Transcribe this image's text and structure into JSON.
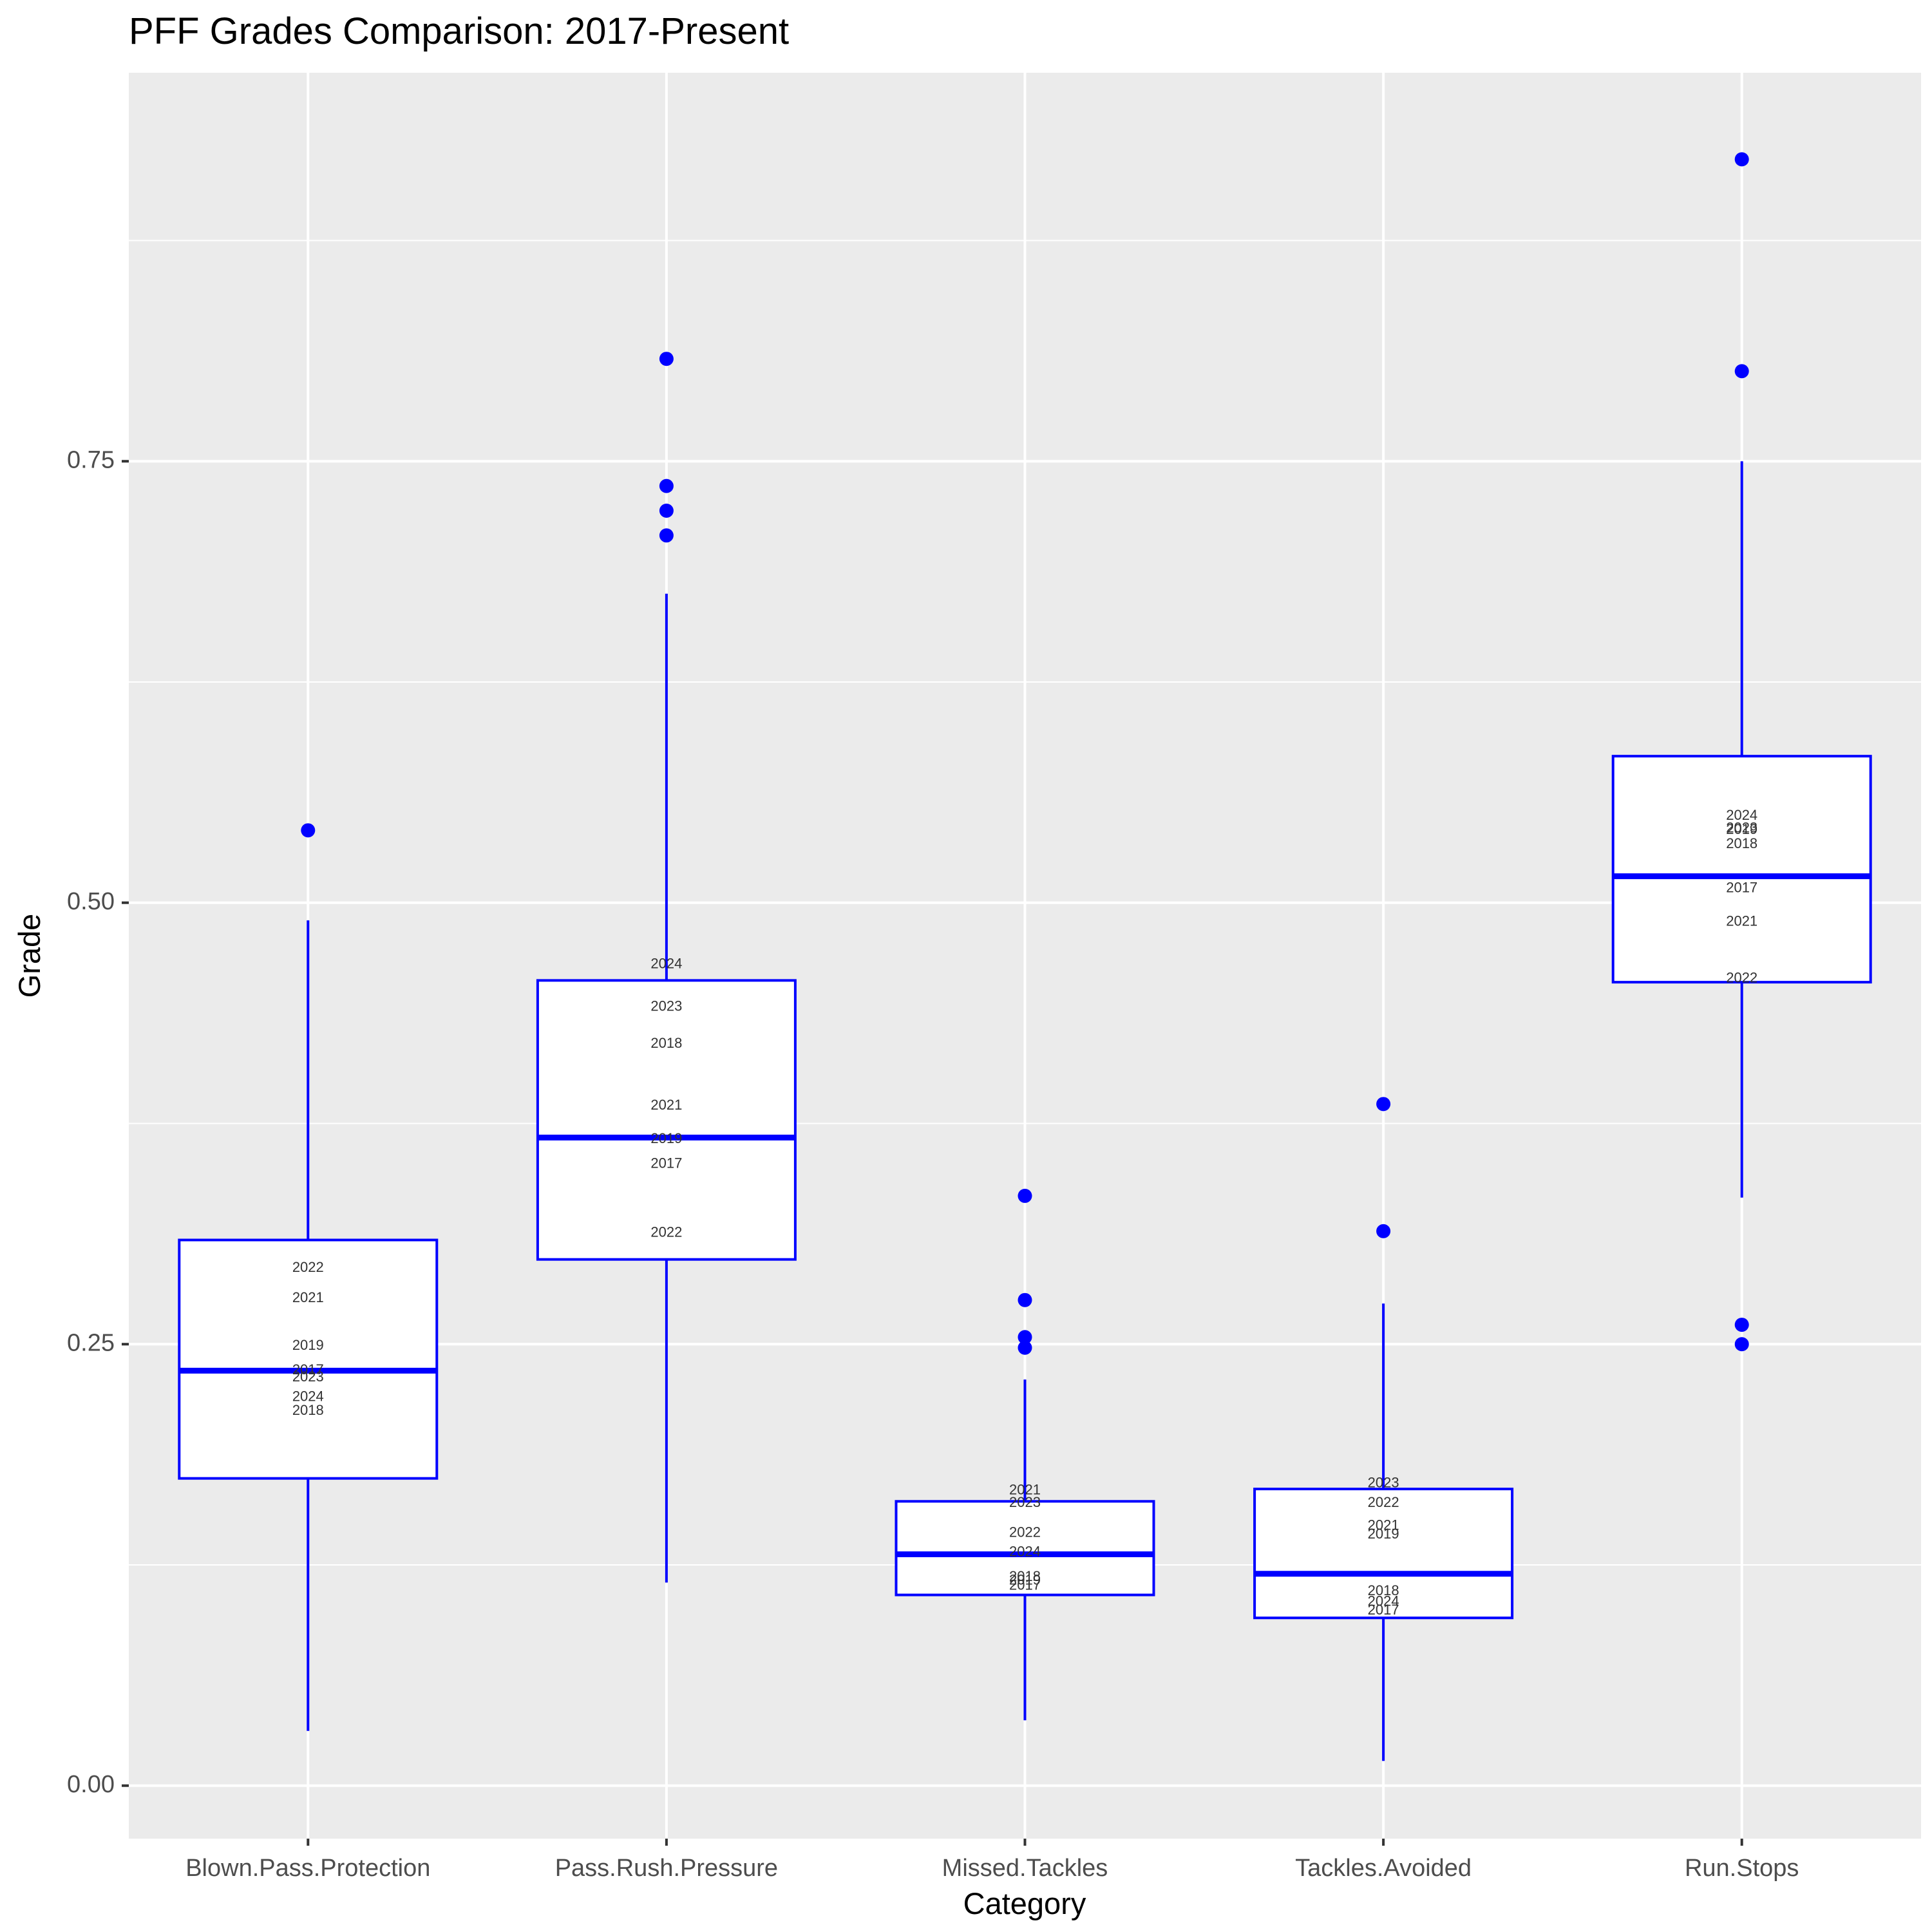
{
  "chart_data": {
    "type": "box",
    "title": "PFF Grades Comparison: 2017-Present",
    "xlabel": "Category",
    "ylabel": "Grade",
    "ylim": [
      -0.03,
      0.97
    ],
    "yticks": [
      0.0,
      0.25,
      0.5,
      0.75
    ],
    "ytick_labels": [
      "0.00",
      "0.25",
      "0.50",
      "0.75"
    ],
    "grid": true,
    "legend": "none",
    "colors": {
      "panel": "#ebebeb",
      "grid": "#ffffff",
      "box_stroke": "#0000ff",
      "box_fill": "#ffffff",
      "outlier": "#0000ff",
      "tick_text": "#4d4d4d",
      "year_text": "#333333"
    },
    "categories": [
      "Blown.Pass.Protection",
      "Pass.Rush.Pressure",
      "Missed.Tackles",
      "Tackles.Avoided",
      "Run.Stops"
    ],
    "boxes": [
      {
        "category": "Blown.Pass.Protection",
        "whisker_low": 0.031,
        "q1": 0.174,
        "median": 0.235,
        "q3": 0.309,
        "whisker_high": 0.49,
        "outliers": [
          0.541
        ],
        "year_labels": [
          {
            "year": "2022",
            "value": 0.293
          },
          {
            "year": "2021",
            "value": 0.276
          },
          {
            "year": "2019",
            "value": 0.249
          },
          {
            "year": "2017",
            "value": 0.235
          },
          {
            "year": "2023",
            "value": 0.231
          },
          {
            "year": "2024",
            "value": 0.22
          },
          {
            "year": "2018",
            "value": 0.212
          }
        ]
      },
      {
        "category": "Pass.Rush.Pressure",
        "whisker_low": 0.115,
        "q1": 0.298,
        "median": 0.367,
        "q3": 0.456,
        "whisker_high": 0.675,
        "outliers": [
          0.808,
          0.736,
          0.722,
          0.708
        ],
        "year_labels": [
          {
            "year": "2024",
            "value": 0.465
          },
          {
            "year": "2023",
            "value": 0.441
          },
          {
            "year": "2018",
            "value": 0.42
          },
          {
            "year": "2021",
            "value": 0.385
          },
          {
            "year": "2019",
            "value": 0.366
          },
          {
            "year": "2017",
            "value": 0.352
          },
          {
            "year": "2022",
            "value": 0.313
          }
        ]
      },
      {
        "category": "Missed.Tackles",
        "whisker_low": 0.037,
        "q1": 0.108,
        "median": 0.131,
        "q3": 0.161,
        "whisker_high": 0.23,
        "outliers": [
          0.334,
          0.275,
          0.254,
          0.248
        ],
        "year_labels": [
          {
            "year": "2021",
            "value": 0.167
          },
          {
            "year": "2023",
            "value": 0.16
          },
          {
            "year": "2022",
            "value": 0.143
          },
          {
            "year": "2024",
            "value": 0.132
          },
          {
            "year": "2018",
            "value": 0.118
          },
          {
            "year": "2019",
            "value": 0.116
          },
          {
            "year": "2017",
            "value": 0.113
          }
        ]
      },
      {
        "category": "Tackles.Avoided",
        "whisker_low": 0.014,
        "q1": 0.095,
        "median": 0.12,
        "q3": 0.168,
        "whisker_high": 0.273,
        "outliers": [
          0.386,
          0.314
        ],
        "year_labels": [
          {
            "year": "2023",
            "value": 0.171
          },
          {
            "year": "2022",
            "value": 0.16
          },
          {
            "year": "2021",
            "value": 0.147
          },
          {
            "year": "2019",
            "value": 0.142
          },
          {
            "year": "2018",
            "value": 0.11
          },
          {
            "year": "2024",
            "value": 0.104
          },
          {
            "year": "2017",
            "value": 0.099
          }
        ]
      },
      {
        "category": "Run.Stops",
        "whisker_low": 0.333,
        "q1": 0.455,
        "median": 0.515,
        "q3": 0.583,
        "whisker_high": 0.75,
        "outliers": [
          0.921,
          0.801,
          0.261,
          0.25
        ],
        "year_labels": [
          {
            "year": "2024",
            "value": 0.549
          },
          {
            "year": "2023",
            "value": 0.542
          },
          {
            "year": "2019",
            "value": 0.541
          },
          {
            "year": "2018",
            "value": 0.533
          },
          {
            "year": "2017",
            "value": 0.508
          },
          {
            "year": "2021",
            "value": 0.489
          },
          {
            "year": "2022",
            "value": 0.457
          }
        ]
      }
    ]
  }
}
